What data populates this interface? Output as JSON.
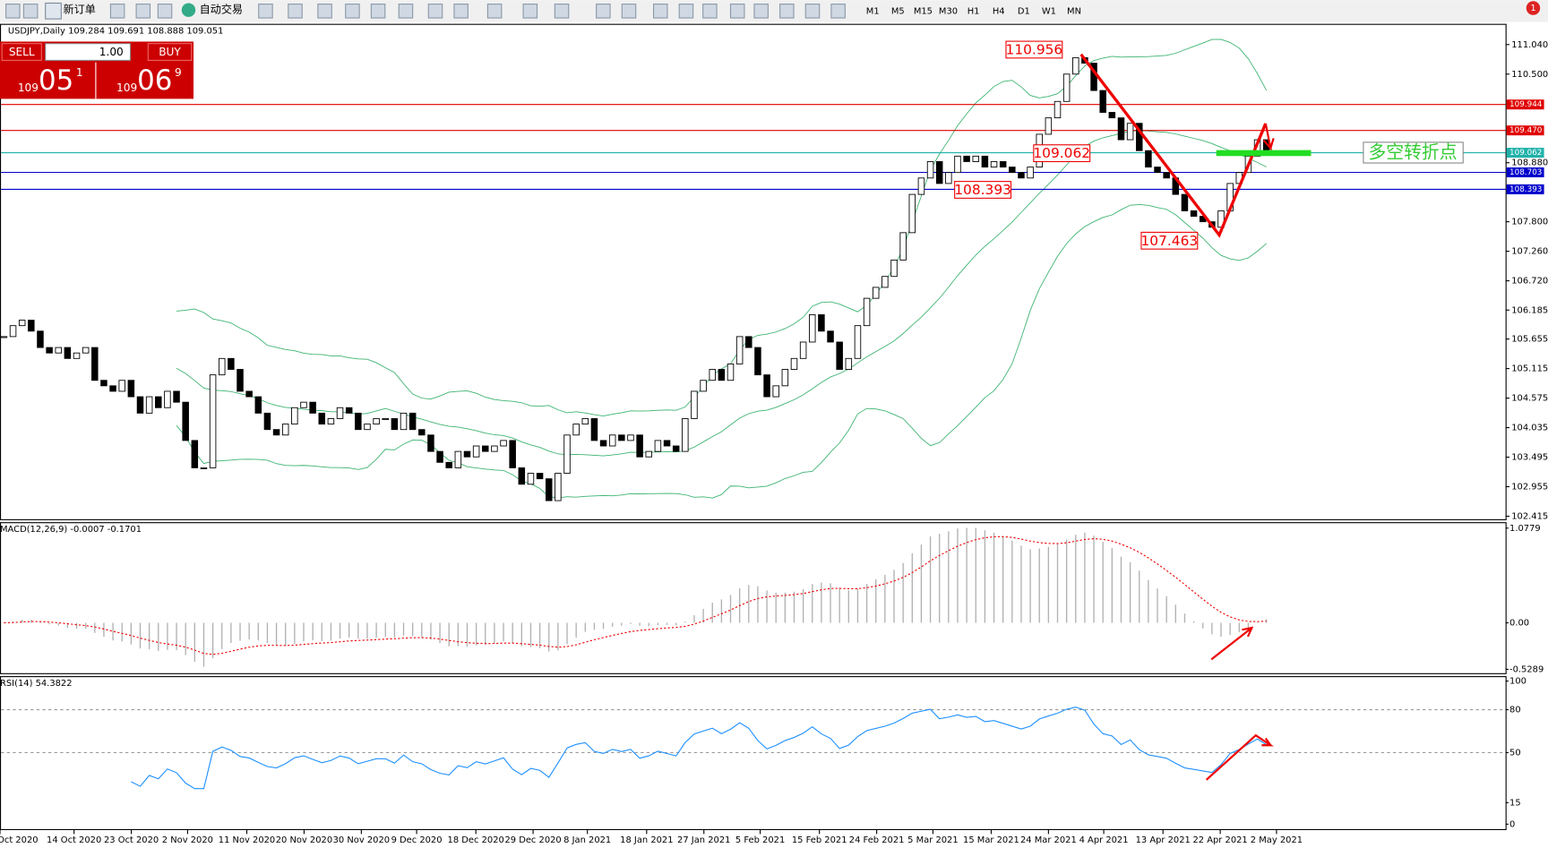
{
  "toolbar": {
    "new_order": "新订单",
    "auto_trading": "自动交易",
    "timeframes": [
      "M1",
      "M5",
      "M15",
      "M30",
      "H1",
      "H4",
      "D1",
      "W1",
      "MN"
    ]
  },
  "notification_count": "1",
  "trade_panel": {
    "sell": "SELL",
    "buy": "BUY",
    "lots": "1.00",
    "bid_big": "109",
    "bid_pips": "05",
    "bid_point": "1",
    "ask_big": "109",
    "ask_pips": "06",
    "ask_point": "9"
  },
  "chart_data": [
    {
      "type": "candlestick",
      "title": "USDJPY,Daily  109.284 109.691 108.888 109.051",
      "close": [
        105.7,
        105.9,
        106.0,
        105.8,
        105.5,
        105.4,
        105.5,
        105.3,
        105.4,
        105.5,
        104.9,
        104.8,
        104.7,
        104.9,
        104.6,
        104.3,
        104.6,
        104.4,
        104.7,
        104.5,
        103.8,
        103.3,
        103.3,
        105.0,
        105.3,
        105.1,
        104.7,
        104.6,
        104.3,
        104.0,
        103.9,
        104.1,
        104.4,
        104.5,
        104.3,
        104.1,
        104.2,
        104.4,
        104.3,
        104.0,
        104.1,
        104.2,
        104.2,
        104.0,
        104.3,
        104.0,
        103.9,
        103.6,
        103.4,
        103.3,
        103.6,
        103.5,
        103.7,
        103.6,
        103.7,
        103.8,
        103.3,
        103.0,
        103.2,
        103.1,
        102.7,
        103.2,
        103.9,
        104.1,
        104.2,
        103.8,
        103.7,
        103.9,
        103.8,
        103.9,
        103.5,
        103.6,
        103.8,
        103.7,
        103.6,
        104.2,
        104.7,
        104.9,
        105.1,
        104.9,
        105.2,
        105.7,
        105.5,
        105.0,
        104.6,
        104.8,
        105.1,
        105.3,
        105.6,
        106.1,
        105.8,
        105.6,
        105.1,
        105.3,
        105.9,
        106.4,
        106.6,
        106.8,
        107.1,
        107.6,
        108.3,
        108.6,
        108.9,
        108.5,
        108.7,
        109.0,
        108.9,
        109.0,
        108.8,
        108.9,
        108.8,
        108.7,
        108.6,
        108.8,
        109.4,
        109.7,
        110.0,
        110.5,
        110.8,
        110.7,
        110.2,
        109.8,
        109.7,
        109.3,
        109.6,
        109.1,
        108.8,
        108.7,
        108.6,
        108.3,
        108.0,
        107.9,
        107.8,
        107.7,
        108.0,
        108.5,
        108.7,
        109.0,
        109.3,
        109.05
      ],
      "ylim": [
        102.36,
        111.365
      ],
      "yticks": [
        {
          "value": 111.04,
          "label": "111.040"
        },
        {
          "value": 110.5,
          "label": "110.500"
        },
        {
          "value": 108.88,
          "label": "108.880"
        },
        {
          "value": 107.8,
          "label": "107.800"
        },
        {
          "value": 107.26,
          "label": "107.260"
        },
        {
          "value": 106.72,
          "label": "106.720"
        },
        {
          "value": 106.185,
          "label": "106.185"
        },
        {
          "value": 105.655,
          "label": "105.655"
        },
        {
          "value": 105.115,
          "label": "105.115"
        },
        {
          "value": 104.575,
          "label": "104.575"
        },
        {
          "value": 104.035,
          "label": "104.035"
        },
        {
          "value": 103.495,
          "label": "103.495"
        },
        {
          "value": 102.955,
          "label": "102.955"
        },
        {
          "value": 102.415,
          "label": "102.415"
        }
      ],
      "hlines": [
        {
          "value": 109.944,
          "label": "109.944",
          "color": "#e00000"
        },
        {
          "value": 109.47,
          "label": "109.470",
          "color": "#e00000"
        },
        {
          "value": 109.062,
          "label": "109.062",
          "color": "#20b2aa"
        },
        {
          "value": 108.703,
          "label": "108.703",
          "color": "#0000cc"
        },
        {
          "value": 108.393,
          "label": "108.393",
          "color": "#0000cc"
        }
      ],
      "annotations": [
        {
          "value": 110.956,
          "label": "110.956"
        },
        {
          "value": 109.062,
          "label": "109.062"
        },
        {
          "value": 108.393,
          "label": "108.393"
        },
        {
          "value": 107.463,
          "label": "107.463"
        }
      ],
      "note": "多空转折点",
      "dates": [
        "Oct 2020",
        "14 Oct 2020",
        "23 Oct 2020",
        "2 Nov 2020",
        "11 Nov 2020",
        "20 Nov 2020",
        "30 Nov 2020",
        "9 Dec 2020",
        "18 Dec 2020",
        "29 Dec 2020",
        "8 Jan 2021",
        "18 Jan 2021",
        "27 Jan 2021",
        "5 Feb 2021",
        "15 Feb 2021",
        "24 Feb 2021",
        "5 Mar 2021",
        "15 Mar 2021",
        "24 Mar 2021",
        "4 Apr 2021",
        "13 Apr 2021",
        "22 Apr 2021",
        "2 May 2021"
      ]
    },
    {
      "type": "macd",
      "title": "MACD(12,26,9) -0.0007 -0.1701",
      "ylim": [
        -0.573,
        1.134
      ],
      "yticks": [
        {
          "value": 1.0779,
          "label": "1.0779"
        },
        {
          "value": 0,
          "label": "0.00"
        },
        {
          "value": -0.5289,
          "label": "-0.5289"
        }
      ]
    },
    {
      "type": "rsi",
      "title": "RSI(14) 54.3822",
      "ylim": [
        0,
        100
      ],
      "yticks": [
        100,
        80,
        50,
        15,
        0
      ],
      "levels": [
        80,
        50
      ]
    }
  ]
}
